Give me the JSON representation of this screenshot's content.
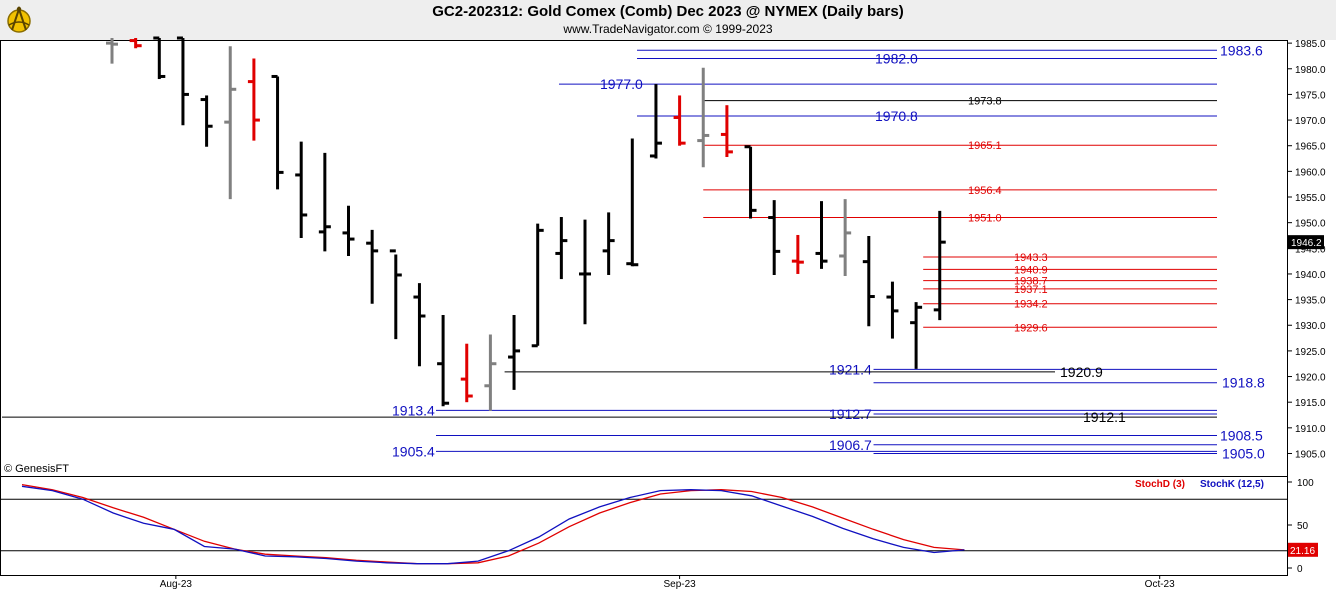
{
  "header": {
    "title": "GC2-202312:  Gold Comex (Comb) Dec 2023 @ NYMEX  (Daily bars)",
    "subtitle": "www.TradeNavigator.com © 1999-2023"
  },
  "copyright": "© GenesisFT",
  "colors": {
    "up_bar": "#000000",
    "down_bar": "#e00000",
    "neutral_bar": "#808080",
    "blue_level": "#1010c0",
    "red_level": "#e00000",
    "black_level": "#000000",
    "stoch_d": "#e00000",
    "stoch_k": "#1010c0",
    "background": "#ffffff"
  },
  "chart_data": [
    {
      "type": "ohlc",
      "title": "GC2-202312:  Gold Comex (Comb) Dec 2023 @ NYMEX  (Daily bars)",
      "ylim": [
        1901,
        1986
      ],
      "y_ticks": [
        1905.0,
        1910.0,
        1915.0,
        1920.0,
        1925.0,
        1930.0,
        1935.0,
        1940.0,
        1945.0,
        1950.0,
        1955.0,
        1960.0,
        1965.0,
        1970.0,
        1975.0,
        1980.0,
        1985.0
      ],
      "x_labels": [
        {
          "label": "Aug-23",
          "bar": 2.7
        },
        {
          "label": "Sep-23",
          "bar": 24.0
        },
        {
          "label": "Oct-23",
          "bar": 44.3
        }
      ],
      "last_price": "1946.2",
      "bars": [
        {
          "o": 1985.0,
          "h": 1986.0,
          "l": 1981.0,
          "c": 1984.8,
          "color": "neutral"
        },
        {
          "o": 1985.5,
          "h": 1986.0,
          "l": 1984.0,
          "c": 1984.5,
          "color": "down"
        },
        {
          "o": 1986.0,
          "h": 1986.0,
          "l": 1978.0,
          "c": 1978.5,
          "color": "up"
        },
        {
          "o": 1986.0,
          "h": 1986.0,
          "l": 1969.0,
          "c": 1975.0,
          "color": "up"
        },
        {
          "o": 1974.0,
          "h": 1974.8,
          "l": 1964.8,
          "c": 1968.8,
          "color": "up"
        },
        {
          "o": 1969.6,
          "h": 1984.4,
          "l": 1954.6,
          "c": 1976.0,
          "color": "neutral"
        },
        {
          "o": 1977.5,
          "h": 1982.0,
          "l": 1966.0,
          "c": 1970.0,
          "color": "down"
        },
        {
          "o": 1978.5,
          "h": 1978.5,
          "l": 1956.5,
          "c": 1959.8,
          "color": "up"
        },
        {
          "o": 1959.3,
          "h": 1965.8,
          "l": 1947.0,
          "c": 1951.5,
          "color": "up"
        },
        {
          "o": 1948.2,
          "h": 1963.6,
          "l": 1944.4,
          "c": 1949.2,
          "color": "up"
        },
        {
          "o": 1948.0,
          "h": 1953.3,
          "l": 1943.5,
          "c": 1946.8,
          "color": "up"
        },
        {
          "o": 1946.0,
          "h": 1948.6,
          "l": 1934.2,
          "c": 1944.5,
          "color": "up"
        },
        {
          "o": 1944.5,
          "h": 1943.8,
          "l": 1927.3,
          "c": 1939.8,
          "color": "up"
        },
        {
          "o": 1935.5,
          "h": 1938.2,
          "l": 1922.0,
          "c": 1931.8,
          "color": "up"
        },
        {
          "o": 1922.5,
          "h": 1932.0,
          "l": 1914.2,
          "c": 1914.8,
          "color": "up"
        },
        {
          "o": 1919.5,
          "h": 1926.4,
          "l": 1915.0,
          "c": 1916.2,
          "color": "down"
        },
        {
          "o": 1918.2,
          "h": 1928.2,
          "l": 1913.3,
          "c": 1922.5,
          "color": "neutral"
        },
        {
          "o": 1923.8,
          "h": 1932.0,
          "l": 1917.4,
          "c": 1925.0,
          "color": "up"
        },
        {
          "o": 1926.0,
          "h": 1949.8,
          "l": 1926.0,
          "c": 1948.5,
          "color": "up"
        },
        {
          "o": 1944.0,
          "h": 1951.1,
          "l": 1939.0,
          "c": 1946.5,
          "color": "up"
        },
        {
          "o": 1940.0,
          "h": 1950.6,
          "l": 1930.2,
          "c": 1940.0,
          "color": "up"
        },
        {
          "o": 1944.5,
          "h": 1952.0,
          "l": 1939.8,
          "c": 1946.5,
          "color": "up"
        },
        {
          "o": 1942.0,
          "h": 1966.4,
          "l": 1941.5,
          "c": 1941.8,
          "color": "up"
        },
        {
          "o": 1963.0,
          "h": 1977.0,
          "l": 1962.5,
          "c": 1965.5,
          "color": "up"
        },
        {
          "o": 1970.5,
          "h": 1974.8,
          "l": 1965.0,
          "c": 1965.5,
          "color": "down"
        },
        {
          "o": 1966.0,
          "h": 1980.2,
          "l": 1960.8,
          "c": 1967.0,
          "color": "neutral"
        },
        {
          "o": 1967.2,
          "h": 1972.9,
          "l": 1962.8,
          "c": 1963.8,
          "color": "down"
        },
        {
          "o": 1964.8,
          "h": 1964.8,
          "l": 1950.8,
          "c": 1952.4,
          "color": "up"
        },
        {
          "o": 1951.0,
          "h": 1954.4,
          "l": 1939.8,
          "c": 1944.4,
          "color": "up"
        },
        {
          "o": 1942.5,
          "h": 1947.6,
          "l": 1940.0,
          "c": 1942.3,
          "color": "down"
        },
        {
          "o": 1944.0,
          "h": 1954.2,
          "l": 1941.0,
          "c": 1942.5,
          "color": "up"
        },
        {
          "o": 1943.5,
          "h": 1954.6,
          "l": 1939.6,
          "c": 1948.0,
          "color": "neutral"
        },
        {
          "o": 1942.4,
          "h": 1947.4,
          "l": 1929.8,
          "c": 1935.6,
          "color": "up"
        },
        {
          "o": 1935.5,
          "h": 1938.5,
          "l": 1927.4,
          "c": 1932.8,
          "color": "up"
        },
        {
          "o": 1930.5,
          "h": 1934.5,
          "l": 1921.5,
          "c": 1933.5,
          "color": "up"
        },
        {
          "o": 1933.0,
          "h": 1952.3,
          "l": 1931.0,
          "c": 1946.2,
          "color": "up"
        }
      ],
      "levels": [
        {
          "price": 1983.6,
          "label": "1983.6",
          "color": "blue",
          "size": "large"
        },
        {
          "price": 1982.0,
          "label": "1982.0",
          "color": "blue",
          "size": "large"
        },
        {
          "price": 1977.0,
          "label": "1977.0",
          "color": "blue",
          "size": "large"
        },
        {
          "price": 1973.8,
          "label": "1973.8",
          "color": "black",
          "size": "small"
        },
        {
          "price": 1970.8,
          "label": "1970.8",
          "color": "blue",
          "size": "large"
        },
        {
          "price": 1965.1,
          "label": "1965.1",
          "color": "red",
          "size": "small"
        },
        {
          "price": 1956.4,
          "label": "1956.4",
          "color": "red",
          "size": "small"
        },
        {
          "price": 1951.0,
          "label": "1951.0",
          "color": "red",
          "size": "small"
        },
        {
          "price": 1943.3,
          "label": "1943.3",
          "color": "red",
          "size": "small"
        },
        {
          "price": 1940.9,
          "label": "1940.9",
          "color": "red",
          "size": "small"
        },
        {
          "price": 1938.7,
          "label": "1938.7",
          "color": "red",
          "size": "small"
        },
        {
          "price": 1937.1,
          "label": "1937.1",
          "color": "red",
          "size": "small"
        },
        {
          "price": 1934.2,
          "label": "1934.2",
          "color": "red",
          "size": "small"
        },
        {
          "price": 1929.6,
          "label": "1929.6",
          "color": "red",
          "size": "small"
        },
        {
          "price": 1921.4,
          "label": "1921.4",
          "color": "blue",
          "size": "large"
        },
        {
          "price": 1920.9,
          "label": "1920.9",
          "color": "black",
          "size": "large"
        },
        {
          "price": 1918.8,
          "label": "1918.8",
          "color": "blue",
          "size": "large"
        },
        {
          "price": 1913.4,
          "label": "1913.4",
          "color": "blue",
          "size": "large"
        },
        {
          "price": 1912.7,
          "label": "1912.7",
          "color": "blue",
          "size": "large"
        },
        {
          "price": 1912.1,
          "label": "1912.1",
          "color": "black",
          "size": "large"
        },
        {
          "price": 1908.5,
          "label": "1908.5",
          "color": "blue",
          "size": "large"
        },
        {
          "price": 1906.7,
          "label": "1906.7",
          "color": "blue",
          "size": "large"
        },
        {
          "price": 1905.4,
          "label": "1905.4",
          "color": "blue",
          "size": "large"
        },
        {
          "price": 1905.0,
          "label": "1905.0",
          "color": "blue",
          "size": "large"
        }
      ]
    },
    {
      "type": "line",
      "ylim": [
        0,
        105
      ],
      "y_ticks": [
        0,
        50,
        100
      ],
      "reference_lines": [
        80,
        20
      ],
      "legend": [
        "StochD (3)",
        "StochK (12,5)"
      ],
      "last_value": "21.16",
      "series": [
        {
          "name": "StochD (3)",
          "color": "red",
          "values": [
            [
              0,
              97
            ],
            [
              2,
              91
            ],
            [
              4,
              82
            ],
            [
              6,
              70
            ],
            [
              8,
              59
            ],
            [
              10,
              45
            ],
            [
              12,
              31
            ],
            [
              14,
              22
            ],
            [
              16,
              16
            ],
            [
              18,
              14
            ],
            [
              20,
              12
            ],
            [
              22,
              9
            ],
            [
              24,
              7
            ],
            [
              26,
              5
            ],
            [
              28,
              5
            ],
            [
              30,
              6
            ],
            [
              32,
              14
            ],
            [
              34,
              29
            ],
            [
              36,
              48
            ],
            [
              38,
              64
            ],
            [
              40,
              76
            ],
            [
              42,
              86
            ],
            [
              44,
              90
            ],
            [
              46,
              91
            ],
            [
              48,
              89
            ],
            [
              50,
              82
            ],
            [
              52,
              71
            ],
            [
              54,
              58
            ],
            [
              56,
              45
            ],
            [
              58,
              33
            ],
            [
              60,
              24
            ],
            [
              62,
              21
            ]
          ]
        },
        {
          "name": "StochK (12,5)",
          "color": "blue",
          "values": [
            [
              0,
              95
            ],
            [
              2,
              90
            ],
            [
              4,
              80
            ],
            [
              6,
              64
            ],
            [
              8,
              52
            ],
            [
              10,
              45
            ],
            [
              12,
              25
            ],
            [
              14,
              22
            ],
            [
              16,
              14
            ],
            [
              18,
              13
            ],
            [
              20,
              11
            ],
            [
              22,
              8
            ],
            [
              24,
              6
            ],
            [
              26,
              5
            ],
            [
              28,
              5
            ],
            [
              30,
              8
            ],
            [
              32,
              20
            ],
            [
              34,
              36
            ],
            [
              36,
              57
            ],
            [
              38,
              71
            ],
            [
              40,
              82
            ],
            [
              42,
              90
            ],
            [
              44,
              91
            ],
            [
              46,
              90
            ],
            [
              48,
              84
            ],
            [
              50,
              72
            ],
            [
              52,
              60
            ],
            [
              54,
              46
            ],
            [
              56,
              34
            ],
            [
              58,
              24
            ],
            [
              60,
              18
            ],
            [
              62,
              21
            ]
          ]
        }
      ]
    }
  ]
}
